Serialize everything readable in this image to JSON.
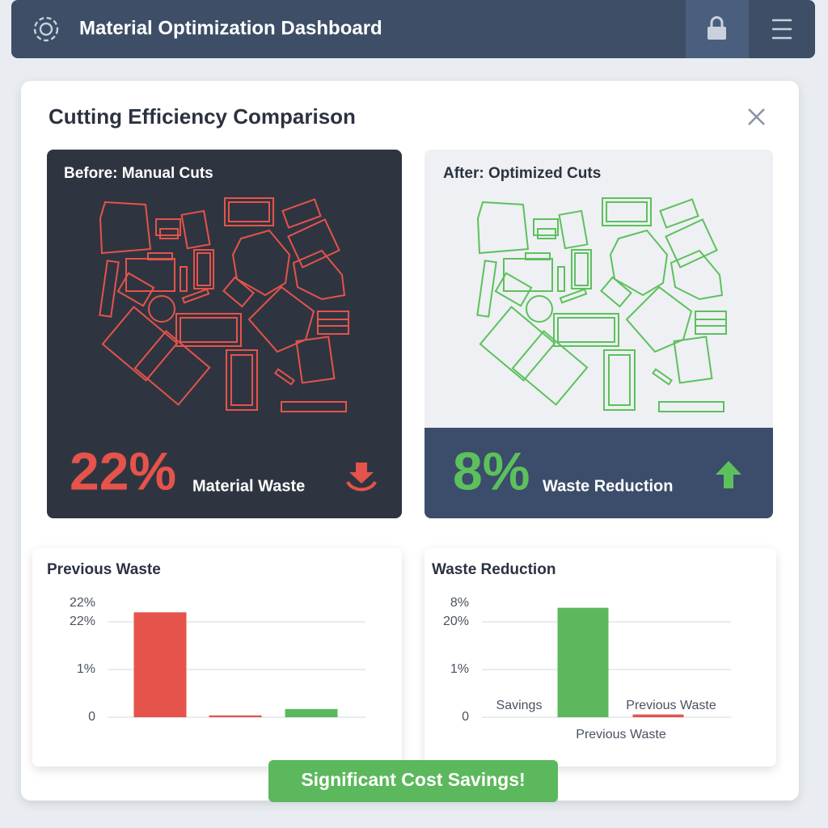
{
  "header": {
    "title": "Material Optimization Dashboard"
  },
  "dialog": {
    "title": "Cutting Efficiency Comparison"
  },
  "panels": [
    {
      "title": "Before: Manual Cuts",
      "stat": "22%",
      "stat_label": "Material Waste"
    },
    {
      "title": "After: Optimized Cuts",
      "stat": "8%",
      "stat_label": "Waste Reduction"
    }
  ],
  "charts": [
    {
      "type": "bar",
      "title": "Previous Waste",
      "tick_labels": [
        "22%",
        "22%",
        "1%",
        "0"
      ],
      "values": [
        23,
        0.4,
        1.8
      ],
      "colors": [
        "#e5534b",
        "#e5534b",
        "#5cb85c"
      ],
      "ylim": [
        0,
        25
      ]
    },
    {
      "type": "bar",
      "title": "Waste Reduction",
      "tick_labels": [
        "8%",
        "20%",
        "1%",
        "0"
      ],
      "categories": [
        "Savings",
        null,
        "Previous Waste"
      ],
      "values": [
        null,
        24,
        0.6
      ],
      "colors": [
        "#5cb85c",
        "#5cb85c",
        "#e5534b"
      ],
      "xlabel": "Previous Waste",
      "ylim": [
        0,
        25
      ]
    }
  ],
  "button": "Significant Cost Savings!"
}
